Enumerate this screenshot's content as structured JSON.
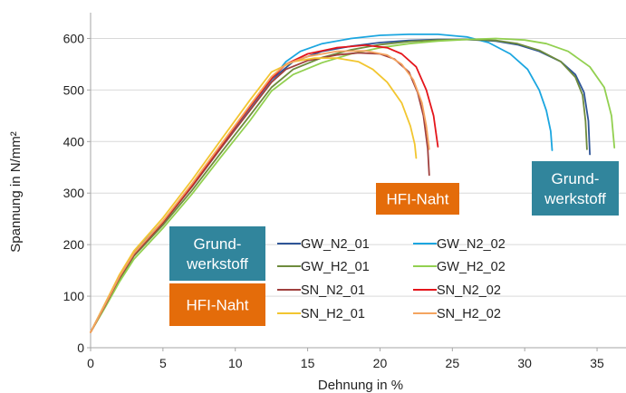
{
  "chart_data": {
    "type": "line",
    "title": "",
    "xlabel": "Dehnung in %",
    "ylabel": "Spannung in N/mm²",
    "xlim": [
      0,
      37
    ],
    "ylim": [
      0,
      650
    ],
    "xticks": [
      0,
      5,
      10,
      15,
      20,
      25,
      30,
      35
    ],
    "yticks": [
      0,
      100,
      200,
      300,
      400,
      500,
      600
    ],
    "grid": "horizontal",
    "legend_position": "bottom-center",
    "series": [
      {
        "name": "GW_N2_01",
        "color": "#2F5597",
        "x": [
          0,
          1,
          2,
          3,
          5,
          7,
          9,
          11,
          12.5,
          14,
          16,
          18,
          20,
          22,
          24,
          26,
          28,
          29.5,
          31,
          32.5,
          33.5,
          34.1,
          34.4,
          34.5
        ],
        "y": [
          30,
          85,
          140,
          185,
          245,
          315,
          390,
          465,
          520,
          555,
          575,
          585,
          592,
          596,
          598,
          598,
          595,
          588,
          575,
          555,
          530,
          495,
          440,
          375
        ]
      },
      {
        "name": "GW_N2_02",
        "color": "#1BA6E0",
        "x": [
          0,
          1,
          2,
          3,
          5,
          7,
          9,
          11,
          12.5,
          13.5,
          14.5,
          16,
          18,
          20,
          22,
          24,
          26,
          27.5,
          29,
          30.2,
          31,
          31.5,
          31.8,
          31.9
        ],
        "y": [
          30,
          85,
          140,
          185,
          245,
          315,
          390,
          465,
          520,
          555,
          575,
          590,
          600,
          606,
          608,
          608,
          603,
          592,
          570,
          540,
          500,
          460,
          420,
          383
        ]
      },
      {
        "name": "GW_H2_01",
        "color": "#6E8B3D",
        "x": [
          0,
          1,
          2,
          3,
          5,
          7,
          9,
          11,
          12.5,
          14,
          16,
          18,
          20,
          22,
          24,
          26,
          28,
          29.5,
          31,
          32.5,
          33.5,
          34,
          34.2,
          34.3
        ],
        "y": [
          30,
          80,
          132,
          178,
          238,
          305,
          378,
          450,
          505,
          540,
          563,
          578,
          588,
          594,
          597,
          598,
          596,
          590,
          577,
          555,
          525,
          490,
          440,
          385
        ]
      },
      {
        "name": "GW_H2_02",
        "color": "#92D050",
        "x": [
          0,
          1,
          2,
          3,
          5,
          7,
          9,
          11,
          12.5,
          14,
          16,
          18,
          20,
          22,
          24,
          26,
          28,
          30,
          31.5,
          33,
          34.5,
          35.5,
          36,
          36.2
        ],
        "y": [
          30,
          78,
          128,
          172,
          232,
          298,
          370,
          440,
          498,
          530,
          553,
          570,
          582,
          590,
          595,
          598,
          600,
          597,
          590,
          575,
          545,
          505,
          450,
          388
        ]
      },
      {
        "name": "SN_N2_01",
        "color": "#A0403E",
        "x": [
          0,
          1,
          2,
          3,
          5,
          7,
          9,
          11,
          12.5,
          13.5,
          15,
          17,
          18.5,
          20,
          21,
          22,
          22.6,
          23,
          23.3,
          23.4
        ],
        "y": [
          30,
          82,
          136,
          180,
          242,
          312,
          387,
          460,
          515,
          540,
          557,
          568,
          572,
          570,
          560,
          535,
          495,
          450,
          385,
          335
        ]
      },
      {
        "name": "SN_N2_02",
        "color": "#E4151B",
        "x": [
          0,
          1,
          2,
          3,
          5,
          7,
          9,
          11,
          12.5,
          13.5,
          15,
          17,
          19,
          20.5,
          21.5,
          22.5,
          23.2,
          23.7,
          23.9,
          24
        ],
        "y": [
          30,
          84,
          138,
          183,
          245,
          316,
          392,
          467,
          522,
          550,
          570,
          582,
          587,
          582,
          570,
          545,
          500,
          450,
          410,
          390
        ]
      },
      {
        "name": "SN_H2_01",
        "color": "#F2C630",
        "x": [
          0,
          1,
          2,
          3,
          5,
          7,
          9,
          11,
          12.5,
          14,
          15.5,
          17,
          18.5,
          19.5,
          20.5,
          21.5,
          22.1,
          22.4,
          22.5
        ],
        "y": [
          30,
          86,
          142,
          188,
          252,
          325,
          403,
          480,
          535,
          555,
          562,
          562,
          555,
          540,
          515,
          475,
          430,
          395,
          368
        ]
      },
      {
        "name": "SN_H2_02",
        "color": "#F4A460",
        "x": [
          0,
          1,
          2,
          3,
          5,
          7,
          9,
          11,
          12.5,
          13.5,
          15,
          17,
          19,
          20.5,
          21.5,
          22.3,
          22.9,
          23.2,
          23.4
        ],
        "y": [
          30,
          84,
          138,
          183,
          246,
          318,
          394,
          470,
          526,
          550,
          565,
          575,
          576,
          568,
          550,
          520,
          475,
          430,
          385
        ]
      }
    ],
    "annotations": [
      {
        "id": "grundwerkstoff-top",
        "lines": [
          "Grund-",
          "werkstoff"
        ],
        "color": "#31859C"
      },
      {
        "id": "hfi-naht-top",
        "lines": [
          "HFI-Naht"
        ],
        "color": "#E46C0A"
      },
      {
        "id": "grundwerkstoff-legend",
        "lines": [
          "Grund-",
          "werkstoff"
        ],
        "color": "#31859C"
      },
      {
        "id": "hfi-naht-legend",
        "lines": [
          "HFI-Naht"
        ],
        "color": "#E46C0A"
      }
    ]
  }
}
